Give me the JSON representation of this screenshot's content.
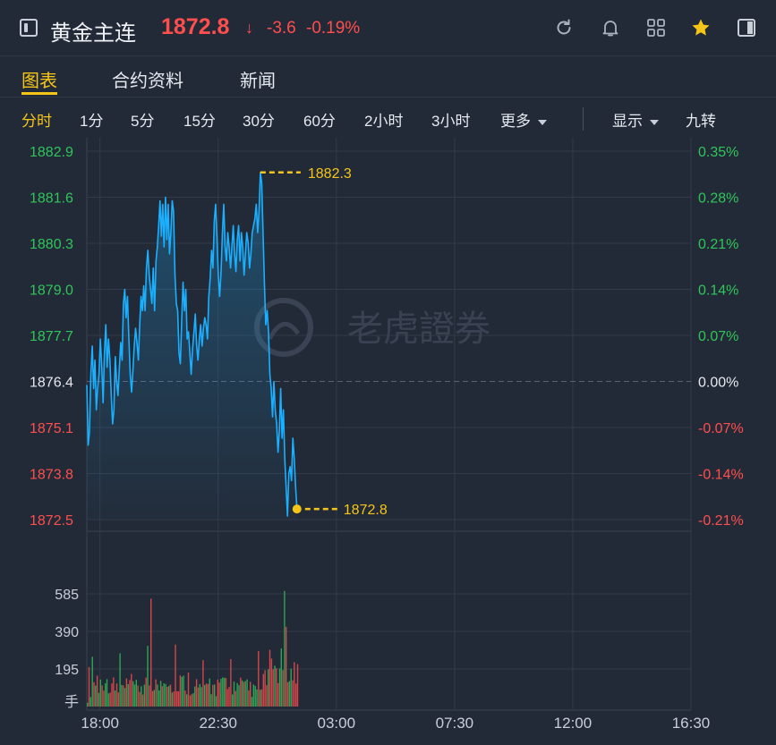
{
  "header": {
    "title": "黄金主连",
    "price": "1872.8",
    "arrow": "↓",
    "change": "-3.6",
    "change_pct": "-0.19%"
  },
  "tabs": [
    {
      "label": "图表",
      "active": true
    },
    {
      "label": "合约资料",
      "active": false
    },
    {
      "label": "新闻",
      "active": false
    }
  ],
  "periods": [
    "分时",
    "1分",
    "5分",
    "15分",
    "30分",
    "60分",
    "2小时",
    "3小时",
    "更多"
  ],
  "options": {
    "display": "显示",
    "nine": "九转"
  },
  "icons": [
    "refresh-icon",
    "bell-icon",
    "grid-icon",
    "star-icon",
    "panel-icon"
  ],
  "colors": {
    "up": "#2fc55a",
    "down": "#ff4e4e",
    "accent": "#f5c518",
    "line": "#1ab0ff"
  },
  "watermark": "老虎證券",
  "chart_data": {
    "type": "line",
    "price_axis": [
      "1882.9",
      "1881.6",
      "1880.3",
      "1879.0",
      "1877.7",
      "1876.4",
      "1875.1",
      "1873.8",
      "1872.5"
    ],
    "pct_axis": [
      "0.35%",
      "0.28%",
      "0.21%",
      "0.14%",
      "0.07%",
      "0.00%",
      "-0.07%",
      "-0.14%",
      "-0.21%"
    ],
    "ylim": [
      1872.5,
      1882.9
    ],
    "prev_close": 1876.4,
    "high_label": "1882.3",
    "last_label": "1872.8",
    "x_ticks": [
      "18:00",
      "22:30",
      "03:00",
      "07:30",
      "12:00",
      "16:30"
    ],
    "volume_axis": [
      "585",
      "390",
      "195",
      "手"
    ],
    "volume_max": 780,
    "session_hours": 23,
    "elapsed_hours": 8.0,
    "price_series": [
      1876.3,
      1874.6,
      1875.0,
      1876.6,
      1877.4,
      1876.2,
      1877.0,
      1875.6,
      1876.2,
      1876.6,
      1877.6,
      1876.8,
      1875.8,
      1877.2,
      1878.0,
      1876.8,
      1877.6,
      1877.0,
      1876.0,
      1875.2,
      1875.6,
      1877.1,
      1876.4,
      1876.0,
      1876.8,
      1877.5,
      1877.0,
      1878.6,
      1879.0,
      1878.2,
      1878.8,
      1877.6,
      1876.6,
      1876.1,
      1876.7,
      1877.4,
      1877.9,
      1877.5,
      1877.0,
      1878.0,
      1878.8,
      1878.4,
      1879.1,
      1878.4,
      1879.6,
      1880.1,
      1879.4,
      1879.0,
      1878.6,
      1879.6,
      1878.4,
      1879.8,
      1880.2,
      1880.8,
      1881.5,
      1880.5,
      1881.4,
      1880.2,
      1881.6,
      1880.4,
      1881.4,
      1880.0,
      1880.6,
      1881.5,
      1881.2,
      1879.4,
      1878.6,
      1878.4,
      1877.2,
      1876.9,
      1878.1,
      1879.2,
      1878.4,
      1879.0,
      1877.6,
      1877.8,
      1877.2,
      1876.6,
      1877.3,
      1877.8,
      1878.3,
      1877.4,
      1877.0,
      1877.6,
      1878.0,
      1877.4,
      1877.9,
      1878.2,
      1878.0,
      1877.6,
      1878.8,
      1879.3,
      1880.1,
      1879.6,
      1880.9,
      1881.4,
      1880.5,
      1879.4,
      1878.8,
      1879.5,
      1880.6,
      1881.4,
      1880.2,
      1879.8,
      1880.6,
      1880.2,
      1879.6,
      1880.2,
      1880.8,
      1880.0,
      1879.5,
      1880.4,
      1880.8,
      1879.8,
      1880.6,
      1880.2,
      1879.4,
      1880.0,
      1880.6,
      1880.3,
      1879.6,
      1880.0,
      1880.6,
      1880.8,
      1881.0,
      1881.4,
      1880.6,
      1881.2,
      1882.3,
      1882.0,
      1880.6,
      1879.2,
      1878.0,
      1878.4,
      1877.8,
      1876.6,
      1876.2,
      1875.4,
      1876.4,
      1875.6,
      1875.2,
      1874.4,
      1875.0,
      1876.2,
      1874.8,
      1875.6,
      1874.2,
      1873.4,
      1872.6,
      1873.8,
      1874.0,
      1873.6,
      1874.8,
      1874.2,
      1873.4,
      1872.8
    ]
  }
}
